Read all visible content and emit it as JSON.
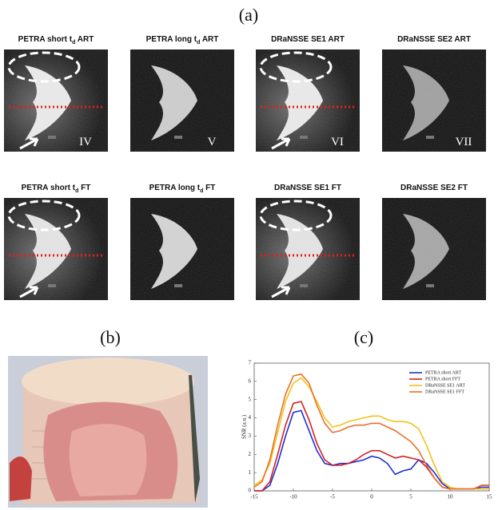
{
  "figure": {
    "label_a": "(a)",
    "label_b": "(b)",
    "label_c": "(c)",
    "rows": [
      {
        "tiles": [
          {
            "title": {
              "pre": "PETRA short t",
              "sub": "d",
              "post": " ART"
            },
            "numeral": "IV"
          },
          {
            "title": {
              "pre": "PETRA long t",
              "sub": "d",
              "post": " ART"
            },
            "numeral": "V"
          },
          {
            "title": {
              "pre": "DRaNSSE SE1 ART"
            },
            "numeral": "VI"
          },
          {
            "title": {
              "pre": "DRaNSSE SE2 ART"
            },
            "numeral": "VII"
          }
        ]
      },
      {
        "tiles": [
          {
            "title": {
              "pre": "PETRA short t",
              "sub": "d",
              "post": " FT"
            }
          },
          {
            "title": {
              "pre": "PETRA long t",
              "sub": "d",
              "post": " FT"
            }
          },
          {
            "title": {
              "pre": "DRaNSSE SE1 FT"
            }
          },
          {
            "title": {
              "pre": "DRaNSSE SE2 FT"
            }
          }
        ]
      }
    ]
  },
  "chart_data": {
    "type": "line",
    "y_label": "SNR (a.u.)",
    "x": [
      -15,
      -14,
      -13,
      -12,
      -11,
      -10,
      -9,
      -8,
      -7,
      -6,
      -5,
      -4,
      -3,
      -2,
      -1,
      0,
      1,
      2,
      3,
      4,
      5,
      6,
      7,
      8,
      9,
      10,
      11,
      12,
      13,
      14,
      15
    ],
    "xlim": [
      -15,
      15
    ],
    "xticks": [
      -15,
      -10,
      -5,
      0,
      5,
      10,
      15
    ],
    "ylim": [
      0,
      7
    ],
    "yticks": [
      0,
      1,
      2,
      3,
      4,
      5,
      6,
      7
    ],
    "legend": "top-right",
    "series": [
      {
        "name": "PETRA short ART",
        "color": "#1f2fd6",
        "values": [
          0,
          0,
          0.3,
          1.5,
          3.0,
          4.3,
          4.4,
          3.3,
          2.2,
          1.5,
          1.4,
          1.5,
          1.5,
          1.6,
          1.7,
          1.9,
          1.8,
          1.5,
          0.9,
          1.1,
          1.2,
          1.7,
          1.5,
          1.0,
          0.4,
          0.1,
          0.1,
          0.1,
          0.1,
          0.2,
          0.2
        ]
      },
      {
        "name": "PETRA short FFT",
        "color": "#d42020",
        "values": [
          0,
          0,
          0.5,
          2.0,
          3.6,
          4.8,
          4.9,
          3.9,
          2.6,
          1.7,
          1.4,
          1.4,
          1.5,
          1.7,
          2.0,
          2.2,
          2.2,
          2.0,
          1.8,
          1.9,
          1.8,
          1.7,
          1.3,
          0.7,
          0.2,
          0.1,
          0.1,
          0.1,
          0.1,
          0.3,
          0.3
        ]
      },
      {
        "name": "DRaNSSE SE1 ART",
        "color": "#f2c21a",
        "values": [
          0.3,
          0.6,
          1.5,
          3.2,
          4.9,
          5.9,
          6.2,
          5.7,
          4.9,
          4.0,
          3.5,
          3.6,
          3.8,
          3.9,
          4.0,
          4.1,
          4.1,
          3.9,
          3.8,
          3.8,
          3.7,
          3.4,
          2.5,
          1.4,
          0.5,
          0.2,
          0.1,
          0.1,
          0.1,
          0.1,
          0.1
        ]
      },
      {
        "name": "DRaNSSE SE1 FFT",
        "color": "#e8702a",
        "values": [
          0.2,
          0.5,
          1.7,
          3.6,
          5.3,
          6.3,
          6.4,
          5.9,
          4.7,
          3.7,
          3.2,
          3.3,
          3.5,
          3.6,
          3.6,
          3.7,
          3.7,
          3.5,
          3.3,
          3.0,
          2.7,
          2.2,
          1.4,
          0.7,
          0.2,
          0.1,
          0.1,
          0.1,
          0.1,
          0.3,
          0.3
        ]
      }
    ]
  }
}
